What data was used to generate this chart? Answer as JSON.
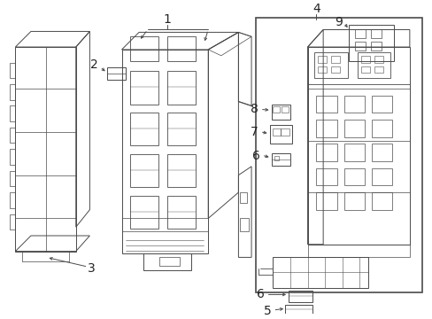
{
  "bg_color": "#ffffff",
  "lc": "#4a4a4a",
  "lw": 0.7,
  "fig_width": 4.89,
  "fig_height": 3.6,
  "dpi": 100,
  "label_fs": 9,
  "label_color": "#222222"
}
